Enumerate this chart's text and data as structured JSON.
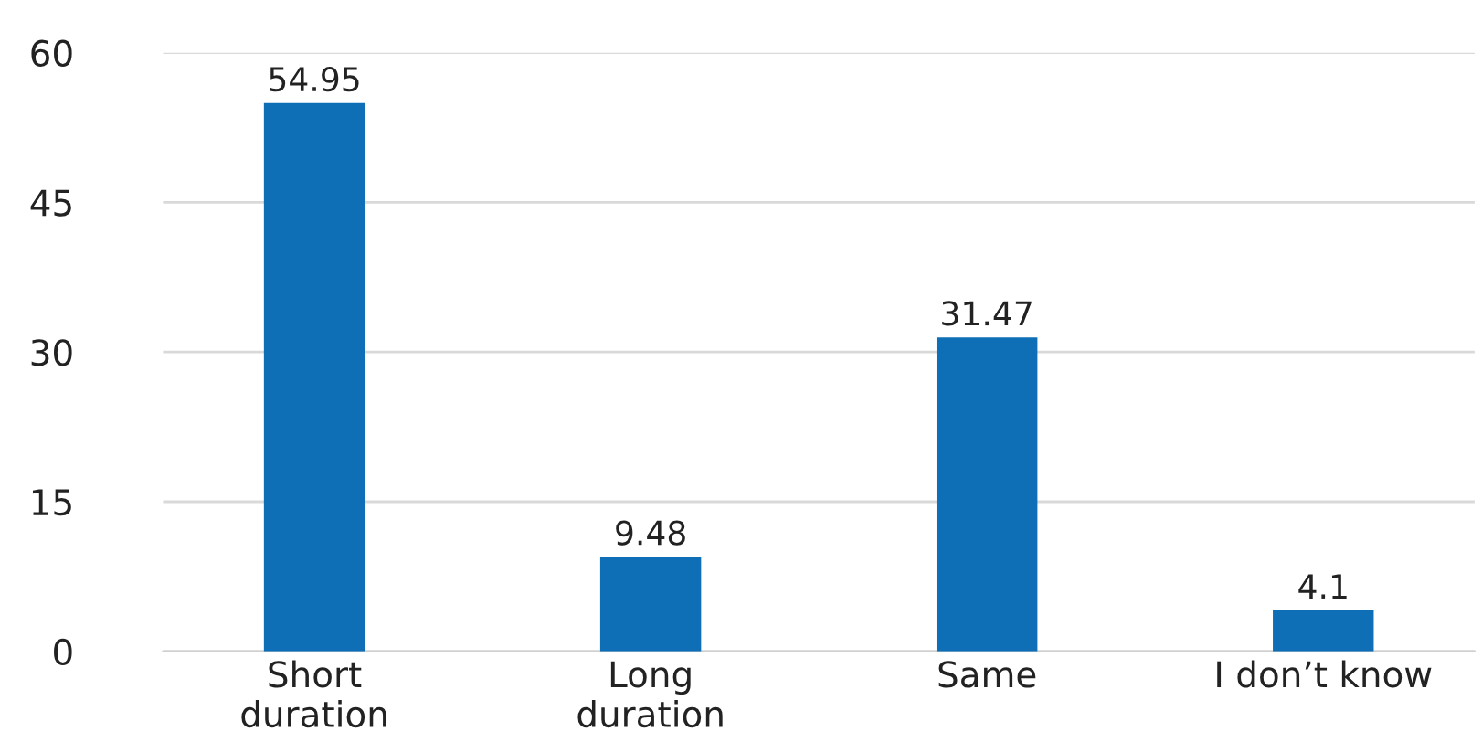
{
  "chart_data": {
    "type": "bar",
    "categories": [
      "Short\nduration",
      "Long\nduration",
      "Same",
      "I don’t know"
    ],
    "values": [
      54.95,
      9.48,
      31.47,
      4.1
    ],
    "color": "#0e6fb7",
    "ylim": [
      0,
      60
    ],
    "yticks": [
      0,
      15,
      30,
      45,
      60
    ],
    "grid": "y",
    "data_labels": true
  }
}
